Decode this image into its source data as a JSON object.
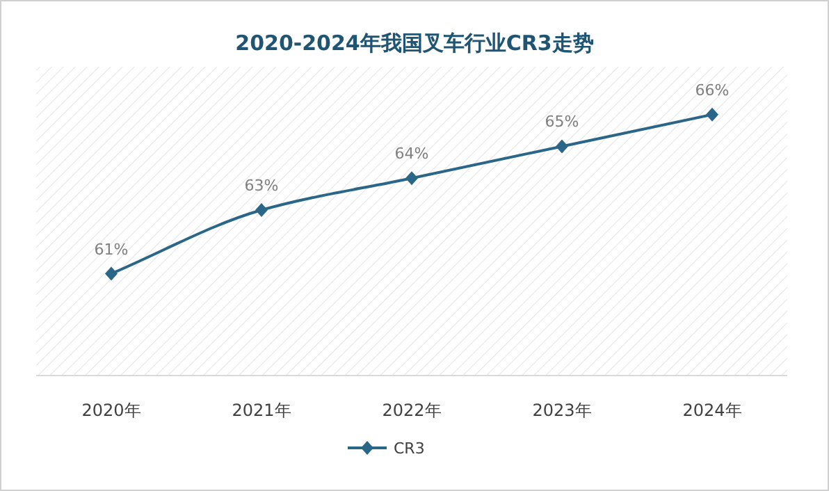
{
  "chart_data": {
    "type": "line",
    "title": "2020-2024年我国叉车行业CR3走势",
    "categories": [
      "2020年",
      "2021年",
      "2022年",
      "2023年",
      "2024年"
    ],
    "series": [
      {
        "name": "CR3",
        "color": "#2a6688",
        "values": [
          61,
          63,
          64,
          65,
          66
        ],
        "value_labels": [
          "61%",
          "63%",
          "64%",
          "65%",
          "66%"
        ]
      }
    ],
    "marker": "diamond",
    "legend": "bottom"
  }
}
